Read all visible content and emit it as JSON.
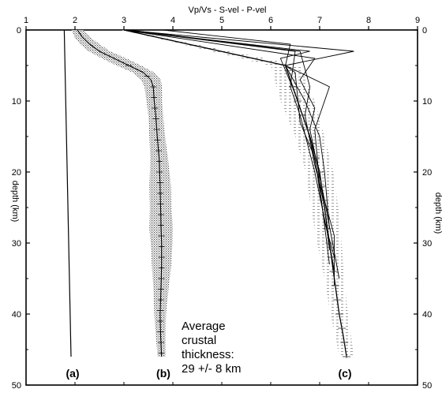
{
  "chart_data": {
    "type": "line",
    "title": "Vp/Vs - S-vel - P-vel",
    "xlabel": "",
    "ylabel_left": "depth (km)",
    "ylabel_right": "depth (km)",
    "xlim": [
      1,
      9
    ],
    "ylim": [
      0,
      50
    ],
    "y_inverted": true,
    "x_ticks": [
      "1",
      "2",
      "3",
      "4",
      "5",
      "6",
      "7",
      "8",
      "9"
    ],
    "y_ticks": [
      "0",
      "10",
      "20",
      "30",
      "40",
      "50"
    ],
    "grid": false,
    "panel_labels": [
      "(a)",
      "(b)",
      "(c)"
    ],
    "annotation": [
      "Average",
      "crustal",
      "thickness:",
      "29 +/- 8 km"
    ],
    "series": [
      {
        "panel": "(a)",
        "depth": [
          0,
          46
        ],
        "value": [
          1.78,
          1.92
        ]
      },
      {
        "panel": "(b)",
        "depth": [
          0,
          1,
          2,
          3,
          4,
          5,
          6,
          7,
          8,
          10,
          12,
          15,
          18,
          20,
          22,
          25,
          28,
          30,
          33,
          36,
          40,
          43,
          46
        ],
        "value": [
          2.05,
          2.15,
          2.3,
          2.5,
          2.8,
          3.1,
          3.4,
          3.55,
          3.6,
          3.62,
          3.65,
          3.68,
          3.72,
          3.73,
          3.74,
          3.75,
          3.76,
          3.77,
          3.77,
          3.76,
          3.74,
          3.75,
          3.77
        ],
        "spread": [
          0.12,
          0.16,
          0.2,
          0.22,
          0.25,
          0.25,
          0.22,
          0.2,
          0.18,
          0.16,
          0.15,
          0.16,
          0.18,
          0.2,
          0.22,
          0.22,
          0.24,
          0.22,
          0.2,
          0.16,
          0.12,
          0.1,
          0.08
        ]
      },
      {
        "panel": "(c)",
        "depth": [
          0,
          5,
          10,
          15,
          20,
          25,
          30,
          35,
          40,
          43,
          46
        ],
        "value": [
          3.0,
          6.3,
          6.55,
          6.8,
          7.0,
          7.1,
          7.2,
          7.3,
          7.4,
          7.48,
          7.55
        ],
        "spread": [
          0.05,
          0.3,
          0.35,
          0.3,
          0.28,
          0.28,
          0.25,
          0.2,
          0.18,
          0.16,
          0.15
        ],
        "models": [
          {
            "depth": [
              0,
              3,
              8,
              12,
              20,
              30,
              34
            ],
            "value": [
              3.0,
              6.5,
              6.4,
              6.6,
              6.9,
              7.2,
              7.3
            ]
          },
          {
            "depth": [
              0,
              3,
              4,
              9,
              15,
              25,
              31
            ],
            "value": [
              3.0,
              6.8,
              6.2,
              6.5,
              6.8,
              7.1,
              7.2
            ]
          },
          {
            "depth": [
              0,
              2,
              5,
              10,
              15,
              20,
              28
            ],
            "value": [
              3.8,
              6.4,
              6.3,
              6.7,
              7.0,
              7.1,
              7.2
            ]
          },
          {
            "depth": [
              0,
              4,
              7,
              11,
              14,
              24,
              35
            ],
            "value": [
              3.0,
              6.9,
              6.6,
              6.9,
              6.8,
              7.1,
              7.4
            ]
          },
          {
            "depth": [
              0,
              5,
              6,
              13,
              18,
              27,
              32
            ],
            "value": [
              3.0,
              6.3,
              6.5,
              6.6,
              6.9,
              7.1,
              7.3
            ]
          },
          {
            "depth": [
              0,
              3,
              5,
              8,
              14,
              22,
              33
            ],
            "value": [
              3.0,
              7.7,
              6.3,
              7.2,
              6.9,
              7.0,
              7.2
            ]
          },
          {
            "depth": [
              0,
              3,
              8,
              12,
              19,
              29,
              36
            ],
            "value": [
              3.1,
              6.6,
              6.8,
              6.7,
              6.9,
              7.3,
              7.3
            ]
          }
        ]
      }
    ]
  }
}
